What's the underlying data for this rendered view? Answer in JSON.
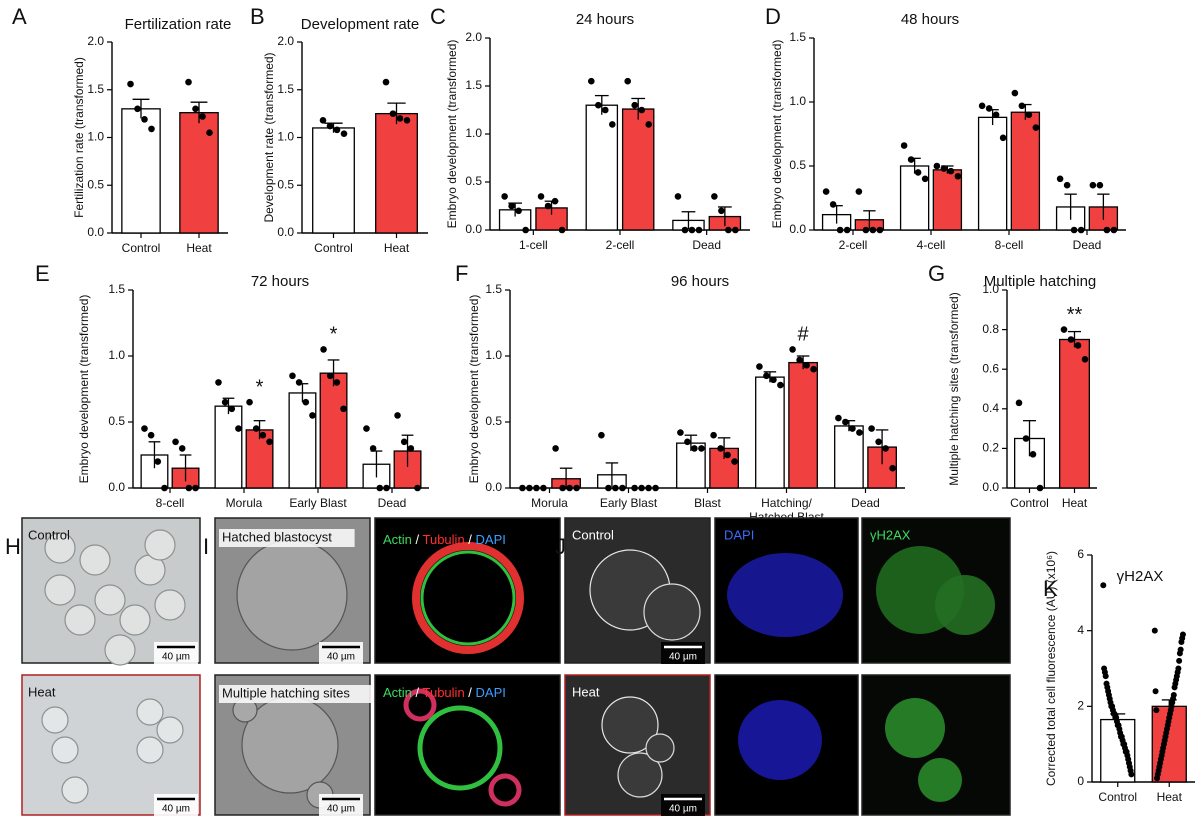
{
  "chart_data": [
    {
      "type": "bar",
      "panel": "A",
      "title": "Fertilization rate",
      "ylabel": "Fertilization rate (transformed)",
      "categories": [
        "Control",
        "Heat"
      ],
      "colors": [
        "#ffffff",
        "#f04040"
      ],
      "values": [
        1.3,
        1.26
      ],
      "errors": [
        0.1,
        0.11
      ],
      "points": [
        [
          1.56,
          1.3,
          1.19,
          1.09
        ],
        [
          1.58,
          1.3,
          1.22,
          1.05
        ]
      ],
      "ylim": [
        0,
        2
      ],
      "yticks": [
        {
          "value": 0,
          "label": "0.0"
        },
        0.5,
        {
          "value": 1,
          "label": "1.0"
        },
        1.5,
        {
          "value": 2,
          "label": "2.0"
        }
      ]
    },
    {
      "type": "bar",
      "panel": "B",
      "title": "Development rate",
      "ylabel": "Development rate (transformed)",
      "categories": [
        "Control",
        "Heat"
      ],
      "colors": [
        "#ffffff",
        "#f04040"
      ],
      "values": [
        1.1,
        1.25
      ],
      "errors": [
        0.05,
        0.11
      ],
      "points": [
        [
          1.18,
          1.12,
          1.08,
          1.04
        ],
        [
          1.58,
          1.25,
          1.2,
          1.18
        ]
      ],
      "ylim": [
        0,
        2
      ],
      "yticks": [
        {
          "value": 0,
          "label": "0.0"
        },
        0.5,
        {
          "value": 1,
          "label": "1.0"
        },
        1.5,
        {
          "value": 2,
          "label": "2.0"
        }
      ]
    },
    {
      "type": "grouped-bar",
      "panel": "C",
      "title": "24 hours",
      "ylabel": "Embryo development (transformed)",
      "categories": [
        "1-cell",
        "2-cell",
        "Dead"
      ],
      "series": [
        {
          "color": "#ffffff",
          "values": [
            0.21,
            1.3,
            0.1
          ],
          "errors": [
            0.07,
            0.1,
            0.09
          ],
          "points": [
            [
              0.35,
              0.25,
              0.2,
              0
            ],
            [
              1.55,
              1.3,
              1.25,
              1.1
            ],
            [
              0.35,
              0,
              0,
              0
            ]
          ]
        },
        {
          "color": "#f04040",
          "values": [
            0.23,
            1.26,
            0.14
          ],
          "errors": [
            0.07,
            0.11,
            0.1
          ],
          "points": [
            [
              0.35,
              0.25,
              0.3,
              0
            ],
            [
              1.55,
              1.3,
              1.25,
              1.1
            ],
            [
              0.35,
              0.2,
              0,
              0
            ]
          ]
        }
      ],
      "ylim": [
        0,
        2
      ],
      "yticks": [
        {
          "value": 0,
          "label": "0.0"
        },
        0.5,
        {
          "value": 1,
          "label": "1.0"
        },
        1.5,
        {
          "value": 2,
          "label": "2.0"
        }
      ]
    },
    {
      "type": "grouped-bar",
      "panel": "D",
      "title": "48 hours",
      "ylabel": "Embryo development (transformed)",
      "categories": [
        "2-cell",
        "4-cell",
        "8-cell",
        "Dead"
      ],
      "series": [
        {
          "color": "#ffffff",
          "values": [
            0.12,
            0.5,
            0.88,
            0.18
          ],
          "errors": [
            0.07,
            0.06,
            0.06,
            0.1
          ],
          "points": [
            [
              0.3,
              0.2,
              0,
              0
            ],
            [
              0.66,
              0.55,
              0.45,
              0.4
            ],
            [
              0.97,
              0.95,
              0.9,
              0.72
            ],
            [
              0.4,
              0.35,
              0,
              0
            ]
          ]
        },
        {
          "color": "#f04040",
          "values": [
            0.08,
            0.47,
            0.92,
            0.18
          ],
          "errors": [
            0.07,
            0.03,
            0.06,
            0.1
          ],
          "points": [
            [
              0.3,
              0,
              0,
              0
            ],
            [
              0.5,
              0.48,
              0.46,
              0.42
            ],
            [
              1.07,
              0.97,
              0.9,
              0.8
            ],
            [
              0.35,
              0.35,
              0,
              0
            ]
          ]
        }
      ],
      "ylim": [
        0,
        1.5
      ],
      "yticks": [
        {
          "value": 0,
          "label": "0.0"
        },
        0.5,
        {
          "value": 1,
          "label": "1.0"
        },
        1.5
      ]
    },
    {
      "type": "grouped-bar",
      "panel": "E",
      "title": "72 hours",
      "ylabel": "Embryo development (transformed)",
      "categories": [
        "8-cell",
        "Morula",
        "Early Blast",
        "Dead"
      ],
      "series": [
        {
          "color": "#ffffff",
          "values": [
            0.25,
            0.62,
            0.72,
            0.18
          ],
          "errors": [
            0.1,
            0.06,
            0.07,
            0.1
          ],
          "points": [
            [
              0.45,
              0.4,
              0.2,
              0
            ],
            [
              0.8,
              0.65,
              0.6,
              0.45
            ],
            [
              0.85,
              0.8,
              0.65,
              0.55
            ],
            [
              0.45,
              0.3,
              0,
              0
            ]
          ]
        },
        {
          "color": "#f04040",
          "values": [
            0.15,
            0.44,
            0.87,
            0.28
          ],
          "errors": [
            0.1,
            0.07,
            0.1,
            0.12
          ],
          "points": [
            [
              0.35,
              0.3,
              0,
              0
            ],
            [
              0.65,
              0.45,
              0.4,
              0.35
            ],
            [
              1.05,
              0.85,
              0.8,
              0.6
            ],
            [
              0.55,
              0.35,
              0.3,
              0
            ]
          ],
          "annotations": [
            null,
            "*",
            "*",
            null
          ]
        }
      ],
      "ylim": [
        0,
        1.5
      ],
      "yticks": [
        {
          "value": 0,
          "label": "0.0"
        },
        0.5,
        {
          "value": 1,
          "label": "1.0"
        },
        1.5
      ]
    },
    {
      "type": "grouped-bar",
      "panel": "F",
      "title": "96 hours",
      "ylabel": "Embryo development (transformed)",
      "categories": [
        "Morula",
        "Early Blast",
        "Blast",
        "Hatching/\nHatched Blast",
        "Dead"
      ],
      "series": [
        {
          "color": "#ffffff",
          "values": [
            0,
            0.1,
            0.34,
            0.84,
            0.47
          ],
          "errors": [
            0,
            0.09,
            0.06,
            0.04,
            0.04
          ],
          "points": [
            [
              0,
              0,
              0,
              0
            ],
            [
              0.4,
              0,
              0,
              0
            ],
            [
              0.42,
              0.35,
              0.3,
              0.3
            ],
            [
              0.92,
              0.85,
              0.82,
              0.78
            ],
            [
              0.53,
              0.5,
              0.45,
              0.42
            ]
          ]
        },
        {
          "color": "#f04040",
          "values": [
            0.07,
            0,
            0.3,
            0.95,
            0.31
          ],
          "errors": [
            0.08,
            0,
            0.08,
            0.05,
            0.13
          ],
          "points": [
            [
              0.3,
              0,
              0,
              0
            ],
            [
              0,
              0,
              0,
              0
            ],
            [
              0.4,
              0.3,
              0.25,
              0.2
            ],
            [
              1.05,
              0.97,
              0.93,
              0.9
            ],
            [
              0.45,
              0.35,
              0.3,
              0.15
            ]
          ],
          "annotations": [
            null,
            null,
            null,
            "#",
            null
          ]
        }
      ],
      "ylim": [
        0,
        1.5
      ],
      "yticks": [
        {
          "value": 0,
          "label": "0.0"
        },
        0.5,
        {
          "value": 1,
          "label": "1.0"
        },
        1.5
      ]
    },
    {
      "type": "bar",
      "panel": "G",
      "title": "Multiple hatching",
      "ylabel": "Multiple hatching sites (transformed)",
      "categories": [
        "Control",
        "Heat"
      ],
      "colors": [
        "#ffffff",
        "#f04040"
      ],
      "values": [
        0.25,
        0.75
      ],
      "errors": [
        0.09,
        0.04
      ],
      "points": [
        [
          0.43,
          0.25,
          0.17,
          0
        ],
        [
          0.8,
          0.75,
          0.72,
          0.65
        ]
      ],
      "annotations": [
        null,
        "**"
      ],
      "ylim": [
        0,
        1
      ],
      "yticks": [
        {
          "value": 0,
          "label": "0.0"
        },
        0.2,
        0.4,
        0.6,
        0.8,
        {
          "value": 1,
          "label": "1.0"
        }
      ]
    },
    {
      "type": "bar",
      "panel": "K",
      "title": "γH2AX",
      "ylabel": "Corrected total cell fluorescence (AU) (x10⁶)",
      "categories": [
        "Control",
        "Heat"
      ],
      "colors": [
        "#ffffff",
        "#f04040"
      ],
      "values": [
        1.65,
        2.0
      ],
      "errors": [
        0.15,
        0.17
      ],
      "points": [
        [
          5.2,
          3.0,
          2.9,
          2.8,
          2.6,
          2.5,
          2.4,
          2.3,
          2.2,
          2.1,
          2.0,
          2.0,
          1.9,
          1.8,
          1.8,
          1.7,
          1.7,
          1.6,
          1.5,
          1.5,
          1.4,
          1.3,
          1.2,
          1.2,
          1.1,
          1.0,
          1.0,
          0.9,
          0.8,
          0.8,
          0.7,
          0.6,
          0.5,
          0.4,
          0.3,
          0.2
        ],
        [
          4.0,
          3.9,
          3.8,
          3.7,
          3.5,
          3.4,
          3.2,
          3.0,
          2.9,
          2.8,
          2.7,
          2.6,
          2.5,
          2.3,
          2.2,
          2.1,
          2.0,
          1.9,
          1.8,
          1.7,
          1.6,
          1.5,
          1.4,
          1.3,
          1.2,
          1.1,
          1.0,
          0.9,
          0.8,
          0.7,
          0.6,
          0.5,
          0.4,
          0.3,
          0.2,
          0.1,
          1.9,
          2.4
        ]
      ],
      "ylim": [
        0,
        6
      ],
      "yticks": [
        0,
        2,
        4,
        6
      ]
    }
  ],
  "figure_panels": {
    "H": {
      "panel": "H",
      "top_label": "Control",
      "bottom_label": "Heat",
      "scales": [
        "40 µm",
        "40 µm"
      ]
    },
    "I": {
      "panel": "I",
      "top_label": "Hatched blastocyst",
      "bottom_label": "Multiple hatching sites",
      "stain_top": [
        "Actin",
        " / ",
        "Tubulin",
        " / ",
        "DAPI"
      ],
      "stain_bottom": [
        "Actin",
        " / ",
        "Tubulin",
        " / ",
        "DAPI"
      ],
      "stain_colors": [
        "#3ddc5a",
        "#ffffff",
        "#ff3030",
        "#ffffff",
        "#3aa0ff"
      ],
      "scales": [
        "40 µm",
        "40 µm"
      ]
    },
    "J": {
      "panel": "J",
      "top_label": "Control",
      "bottom_label": "Heat",
      "channels": [
        "DAPI",
        "γH2AX"
      ],
      "scales": [
        "40 µm",
        "40 µm"
      ]
    }
  }
}
